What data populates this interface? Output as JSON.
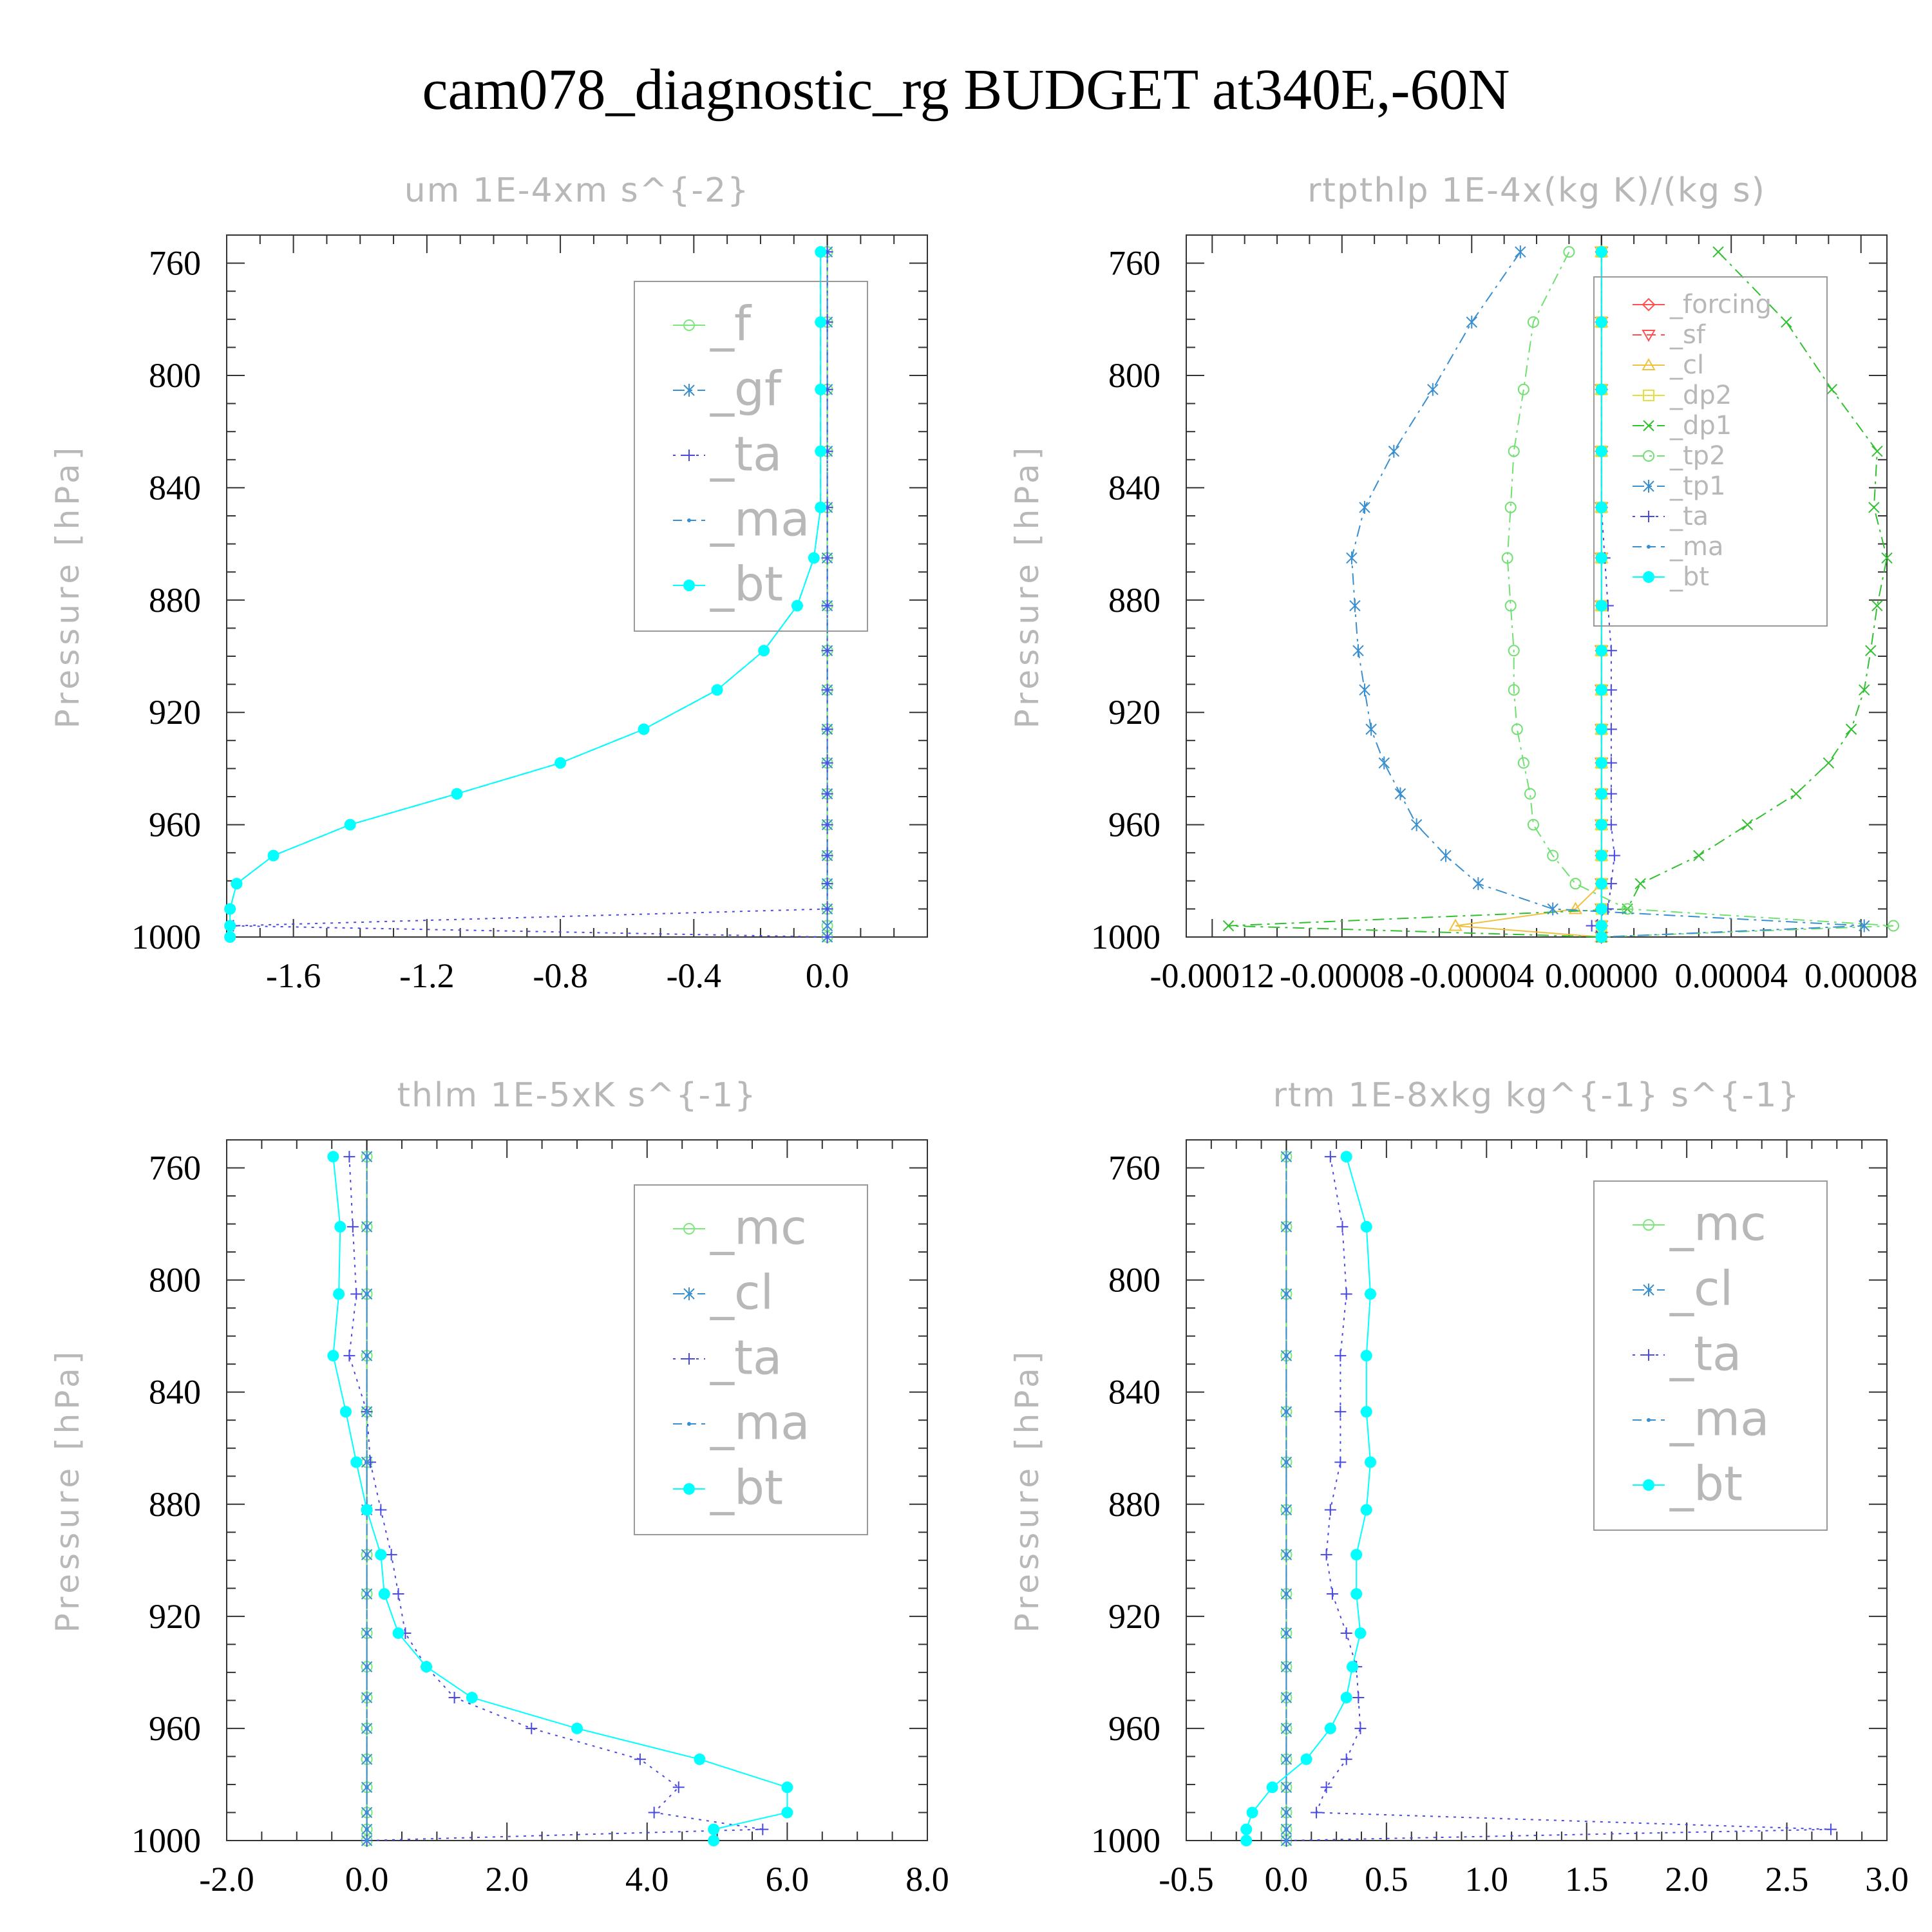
{
  "figure_title": "cam078_diagnostic_rg  BUDGET at340E,-60N",
  "chart_data": [
    {
      "type": "line",
      "title": "um   1E-4xm s^{-2}",
      "ylabel": "Pressure [hPa]",
      "xlim": [
        -1.8,
        0.3
      ],
      "ylim": [
        750,
        1000
      ],
      "x_ticks": [
        "-1.6",
        "-1.2",
        "-0.8",
        "-0.4",
        "0.0"
      ],
      "y_ticks": [
        "760",
        "800",
        "840",
        "880",
        "920",
        "960",
        "1000"
      ],
      "legend": "top-right",
      "pressure": [
        756,
        781,
        805,
        827,
        847,
        865,
        882,
        898,
        912,
        926,
        938,
        949,
        960,
        971,
        981,
        990,
        996,
        1000
      ],
      "series": [
        {
          "name": "_f",
          "color": "#7be87b",
          "marker": "circle-open",
          "dash": "solid",
          "values": [
            0,
            0,
            0,
            0,
            0,
            0,
            0,
            0,
            0,
            0,
            0,
            0,
            0,
            0,
            0,
            0,
            0,
            0
          ]
        },
        {
          "name": "_gf",
          "color": "#3a8fd0",
          "marker": "asterisk",
          "dash": "dashdot",
          "values": [
            0,
            0,
            0,
            0,
            0,
            0,
            0,
            0,
            0,
            0,
            0,
            0,
            0,
            0,
            0,
            0,
            0,
            0
          ]
        },
        {
          "name": "_ta",
          "color": "#4a4ae0",
          "marker": "plus",
          "dash": "dotted",
          "values": [
            0,
            0,
            0,
            0,
            0,
            0,
            0,
            0,
            0,
            0,
            0,
            0,
            0,
            0,
            0,
            0,
            -1.78,
            0
          ]
        },
        {
          "name": "_ma",
          "color": "#3a8fd0",
          "marker": "dot-small",
          "dash": "dashed",
          "values": [
            -0.02,
            -0.02,
            -0.02,
            -0.02,
            -0.02,
            -0.04,
            -0.09,
            -0.19,
            -0.33,
            -0.55,
            -0.8,
            -1.11,
            -1.43,
            -1.66,
            -1.77,
            -1.79,
            -1.79,
            -1.79
          ]
        },
        {
          "name": "_bt",
          "color": "#00ffff",
          "marker": "dot",
          "dash": "solid",
          "values": [
            -0.02,
            -0.02,
            -0.02,
            -0.02,
            -0.02,
            -0.04,
            -0.09,
            -0.19,
            -0.33,
            -0.55,
            -0.8,
            -1.11,
            -1.43,
            -1.66,
            -1.77,
            -1.79,
            -1.79,
            -1.79
          ]
        }
      ]
    },
    {
      "type": "line",
      "title": "rtpthlp   1E-4x(kg K)/(kg s)",
      "ylabel": "Pressure [hPa]",
      "xlim": [
        -0.000128,
        8.8e-05
      ],
      "ylim": [
        750,
        1000
      ],
      "x_ticks": [
        "-0.00012",
        "-0.00008",
        "-0.00004",
        "0.00000",
        "0.00004",
        "0.00008"
      ],
      "y_ticks": [
        "760",
        "800",
        "840",
        "880",
        "920",
        "960",
        "1000"
      ],
      "legend": "top-right",
      "pressure": [
        756,
        781,
        805,
        827,
        847,
        865,
        882,
        898,
        912,
        926,
        938,
        949,
        960,
        971,
        981,
        990,
        996,
        1000
      ],
      "series": [
        {
          "name": "_forcing",
          "color": "#ff5050",
          "marker": "diamond",
          "dash": "solid",
          "values": [
            0,
            0,
            0,
            0,
            0,
            0,
            0,
            0,
            0,
            0,
            0,
            0,
            0,
            0,
            0,
            0,
            0,
            0
          ]
        },
        {
          "name": "_sf",
          "color": "#ff5050",
          "marker": "triangle-down",
          "dash": "dashed",
          "values": [
            0,
            0,
            0,
            0,
            0,
            0,
            0,
            0,
            0,
            0,
            0,
            0,
            0,
            0,
            0,
            0,
            0,
            0
          ]
        },
        {
          "name": "_cl",
          "color": "#f0c040",
          "marker": "triangle-up",
          "dash": "solid",
          "values": [
            0,
            0,
            0,
            0,
            0,
            0,
            0,
            0,
            0,
            0,
            0,
            0,
            0,
            0,
            0,
            -8e-06,
            -4.5e-05,
            0
          ]
        },
        {
          "name": "_dp2",
          "color": "#e0e040",
          "marker": "square",
          "dash": "solid",
          "values": [
            0,
            0,
            0,
            0,
            0,
            0,
            0,
            0,
            0,
            0,
            0,
            0,
            0,
            0,
            0,
            0,
            0,
            0
          ]
        },
        {
          "name": "_dp1",
          "color": "#30c030",
          "marker": "cross",
          "dash": "dashdot",
          "values": [
            3.6e-05,
            5.7e-05,
            7.1e-05,
            8.5e-05,
            8.4e-05,
            8.8e-05,
            8.5e-05,
            8.3e-05,
            8.1e-05,
            7.7e-05,
            7e-05,
            6e-05,
            4.5e-05,
            3e-05,
            1.2e-05,
            8e-06,
            -0.000115,
            0.0
          ]
        },
        {
          "name": "_tp2",
          "color": "#70e070",
          "marker": "circle-open",
          "dash": "dashdot",
          "values": [
            -1e-05,
            -2.1e-05,
            -2.4e-05,
            -2.7e-05,
            -2.8e-05,
            -2.9e-05,
            -2.8e-05,
            -2.7e-05,
            -2.7e-05,
            -2.6e-05,
            -2.4e-05,
            -2.2e-05,
            -2.1e-05,
            -1.5e-05,
            -8e-06,
            8e-06,
            9e-05,
            0.0
          ]
        },
        {
          "name": "_tp1",
          "color": "#3a8fd0",
          "marker": "asterisk",
          "dash": "dashdot",
          "values": [
            -2.5e-05,
            -4e-05,
            -5.2e-05,
            -6.4e-05,
            -7.3e-05,
            -7.7e-05,
            -7.6e-05,
            -7.5e-05,
            -7.3e-05,
            -7.1e-05,
            -6.7e-05,
            -6.2e-05,
            -5.7e-05,
            -4.8e-05,
            -3.8e-05,
            -1.5e-05,
            8.1e-05,
            0.0
          ]
        },
        {
          "name": "_ta",
          "color": "#4a4ae0",
          "marker": "plus",
          "dash": "dotted",
          "values": [
            0,
            0,
            0,
            0,
            0,
            1e-06,
            2e-06,
            3e-06,
            3e-06,
            3e-06,
            3e-06,
            3e-06,
            3e-06,
            4e-06,
            3e-06,
            2e-06,
            -3e-06,
            0
          ]
        },
        {
          "name": "_ma",
          "color": "#3a8fd0",
          "marker": "dot-small",
          "dash": "dashed",
          "values": [
            0,
            0,
            0,
            0,
            0,
            0,
            0,
            0,
            0,
            0,
            0,
            0,
            0,
            0,
            0,
            0,
            0,
            0
          ]
        },
        {
          "name": "_bt",
          "color": "#00ffff",
          "marker": "dot",
          "dash": "solid",
          "values": [
            0,
            0,
            0,
            0,
            0,
            0,
            0,
            0,
            0,
            0,
            0,
            0,
            0,
            0,
            0,
            0,
            0,
            0
          ]
        }
      ]
    },
    {
      "type": "line",
      "title": "thlm   1E-5xK s^{-1}",
      "ylabel": "Pressure [hPa]",
      "xlim": [
        -2.0,
        8.0
      ],
      "ylim": [
        750,
        1000
      ],
      "x_ticks": [
        "-2.0",
        "0.0",
        "2.0",
        "4.0",
        "6.0",
        "8.0"
      ],
      "y_ticks": [
        "760",
        "800",
        "840",
        "880",
        "920",
        "960",
        "1000"
      ],
      "legend": "top-right",
      "pressure": [
        756,
        781,
        805,
        827,
        847,
        865,
        882,
        898,
        912,
        926,
        938,
        949,
        960,
        971,
        981,
        990,
        996,
        1000
      ],
      "series": [
        {
          "name": "_mc",
          "color": "#7be87b",
          "marker": "circle-open",
          "dash": "solid",
          "values": [
            0,
            0,
            0,
            0,
            0,
            0,
            0,
            0,
            0,
            0,
            0,
            0,
            0,
            0,
            0,
            0,
            0,
            0
          ]
        },
        {
          "name": "_cl",
          "color": "#3a8fd0",
          "marker": "asterisk",
          "dash": "dashdot",
          "values": [
            0,
            0,
            0,
            0,
            0,
            0,
            0,
            0,
            0,
            0,
            0,
            0,
            0,
            0,
            0,
            0,
            0,
            0
          ]
        },
        {
          "name": "_ta",
          "color": "#4a4ae0",
          "marker": "plus",
          "dash": "dotted",
          "values": [
            -0.25,
            -0.2,
            -0.15,
            -0.25,
            0.0,
            0.05,
            0.2,
            0.35,
            0.45,
            0.55,
            0.85,
            1.25,
            2.35,
            3.9,
            4.45,
            4.1,
            5.65,
            0.0
          ]
        },
        {
          "name": "_ma",
          "color": "#3a8fd0",
          "marker": "dot-small",
          "dash": "dashed",
          "values": [
            0,
            0,
            0,
            0,
            0,
            0,
            0,
            0,
            0,
            0,
            0,
            0,
            0,
            0,
            0,
            0,
            0,
            0
          ]
        },
        {
          "name": "_bt",
          "color": "#00ffff",
          "marker": "dot",
          "dash": "solid",
          "values": [
            -0.48,
            -0.38,
            -0.4,
            -0.48,
            -0.3,
            -0.15,
            0.0,
            0.2,
            0.25,
            0.45,
            0.85,
            1.5,
            3.0,
            4.75,
            6.0,
            6.0,
            4.95,
            4.95
          ]
        }
      ]
    },
    {
      "type": "line",
      "title": "rtm   1E-8xkg kg^{-1} s^{-1}",
      "ylabel": "Pressure [hPa]",
      "xlim": [
        -0.5,
        3.0
      ],
      "ylim": [
        750,
        1000
      ],
      "x_ticks": [
        "-0.5",
        "0.0",
        "0.5",
        "1.0",
        "1.5",
        "2.0",
        "2.5",
        "3.0"
      ],
      "y_ticks": [
        "760",
        "800",
        "840",
        "880",
        "920",
        "960",
        "1000"
      ],
      "legend": "top-right",
      "pressure": [
        756,
        781,
        805,
        827,
        847,
        865,
        882,
        898,
        912,
        926,
        938,
        949,
        960,
        971,
        981,
        990,
        996,
        1000
      ],
      "series": [
        {
          "name": "_mc",
          "color": "#7be87b",
          "marker": "circle-open",
          "dash": "solid",
          "values": [
            0,
            0,
            0,
            0,
            0,
            0,
            0,
            0,
            0,
            0,
            0,
            0,
            0,
            0,
            0,
            0,
            0,
            0
          ]
        },
        {
          "name": "_cl",
          "color": "#3a8fd0",
          "marker": "asterisk",
          "dash": "dashdot",
          "values": [
            0,
            0,
            0,
            0,
            0,
            0,
            0,
            0,
            0,
            0,
            0,
            0,
            0,
            0,
            0,
            0,
            0,
            0
          ]
        },
        {
          "name": "_ta",
          "color": "#4a4ae0",
          "marker": "plus",
          "dash": "dotted",
          "values": [
            0.22,
            0.28,
            0.3,
            0.27,
            0.27,
            0.27,
            0.22,
            0.2,
            0.23,
            0.3,
            0.35,
            0.36,
            0.37,
            0.3,
            0.2,
            0.15,
            2.72,
            0.0
          ]
        },
        {
          "name": "_ma",
          "color": "#3a8fd0",
          "marker": "dot-small",
          "dash": "dashed",
          "values": [
            0,
            0,
            0,
            0,
            0,
            0,
            0,
            0,
            0,
            0,
            0,
            0,
            0,
            0,
            0,
            0,
            0,
            0
          ]
        },
        {
          "name": "_bt",
          "color": "#00ffff",
          "marker": "dot",
          "dash": "solid",
          "values": [
            0.3,
            0.4,
            0.42,
            0.4,
            0.4,
            0.42,
            0.4,
            0.35,
            0.35,
            0.37,
            0.33,
            0.3,
            0.22,
            0.1,
            -0.07,
            -0.17,
            -0.2,
            -0.2
          ]
        }
      ]
    }
  ]
}
